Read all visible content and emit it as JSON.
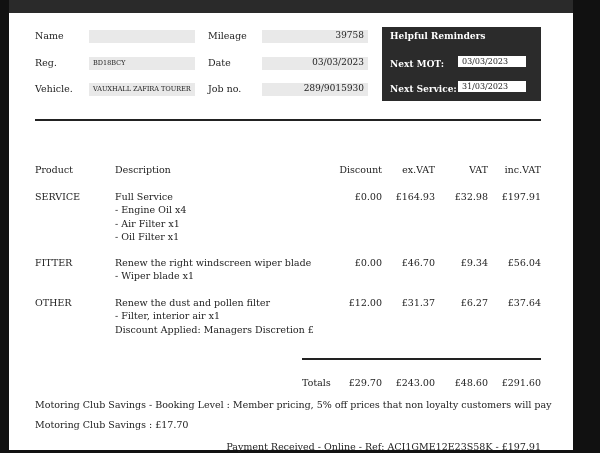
{
  "customer": {
    "name_label": "Name",
    "name_value": "",
    "reg_label": "Reg.",
    "reg_value": "BD18BCY",
    "vehicle_label": "Vehicle.",
    "vehicle_value": "VAUXHALL ZAFIRA TOURER"
  },
  "job": {
    "mileage_label": "Mileage",
    "mileage_value": "39758",
    "date_label": "Date",
    "date_value": "03/03/2023",
    "jobno_label": "Job no.",
    "jobno_value": "289/9015930"
  },
  "reminders": {
    "title": "Helpful Reminders",
    "mot_label": "Next MOT:",
    "mot_value": "03/03/2023",
    "service_label": "Next Service:",
    "service_value": "31/03/2023"
  },
  "table": {
    "headers": [
      "Product",
      "Description",
      "Discount",
      "ex.VAT",
      "VAT",
      "inc.VAT"
    ],
    "rows": [
      {
        "product": "SERVICE",
        "description": [
          "Full Service",
          "- Engine Oil x4",
          "- Air Filter x1",
          "- Oil Filter x1"
        ],
        "discount": "£0.00",
        "exvat": "£164.93",
        "vat": "£32.98",
        "incvat": "£197.91"
      },
      {
        "product": "FITTER",
        "description": [
          "Renew the right windscreen wiper blade",
          "- Wiper blade x1"
        ],
        "discount": "£0.00",
        "exvat": "£46.70",
        "vat": "£9.34",
        "incvat": "£56.04"
      },
      {
        "product": "OTHER",
        "description": [
          "Renew the dust and pollen filter",
          "- Filter, interior air x1",
          "Discount Applied: Managers Discretion £"
        ],
        "discount": "£12.00",
        "exvat": "£31.37",
        "vat": "£6.27",
        "incvat": "£37.64"
      }
    ],
    "totals": {
      "label": "Totals",
      "discount": "£29.70",
      "exvat": "£243.00",
      "vat": "£48.60",
      "incvat": "£291.60"
    }
  },
  "notes": {
    "booking_level": "Motoring Club Savings - Booking Level : Member pricing, 5% off prices that non loyalty customers will pay",
    "savings": "Motoring Club Savings : £17.70",
    "payment": "Payment Received - Online - Ref: ACI1GME12E23S58K - £197.91"
  }
}
